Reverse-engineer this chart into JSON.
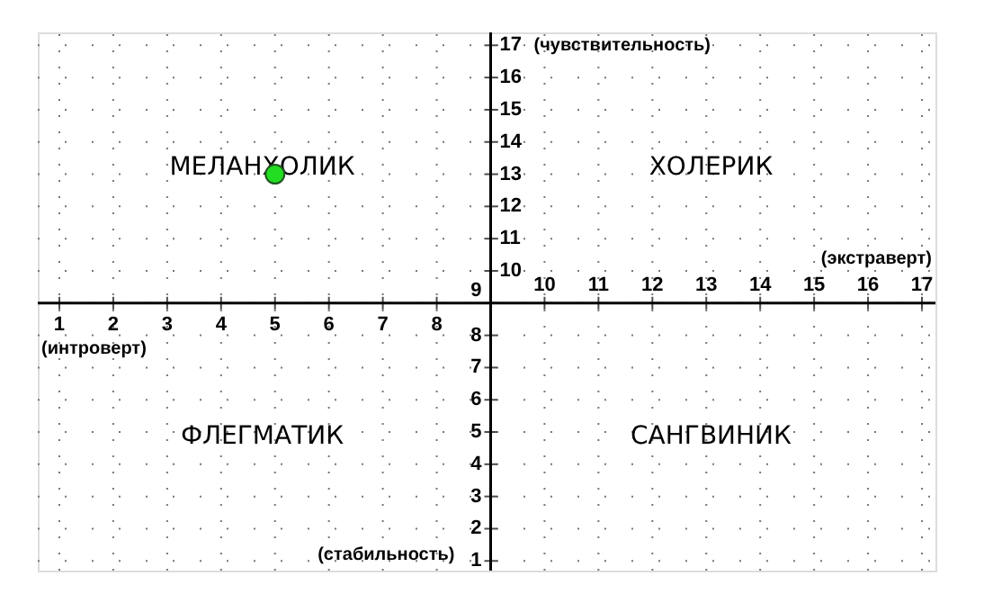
{
  "chart_data": {
    "type": "scatter",
    "x": [
      5
    ],
    "values": [
      13
    ],
    "color": "#22dd22",
    "marker": "circle",
    "xlim": [
      0.6,
      17.25
    ],
    "ylim": [
      0.7,
      17.4
    ],
    "xticks": [
      1,
      2,
      3,
      4,
      5,
      6,
      7,
      8
    ],
    "x2lim": [
      0.6,
      17.25
    ],
    "x2ticks": [
      10,
      11,
      12,
      13,
      14,
      15,
      16,
      17
    ],
    "yticks": [
      1,
      2,
      3,
      4,
      5,
      6,
      7,
      8,
      9
    ],
    "y2lim": [
      0.7,
      17.4
    ],
    "y2ticks": [
      10,
      11,
      12,
      13,
      14,
      15,
      16,
      17
    ],
    "xlabel": "(экстраверт)",
    "y2label": "(чувствительность)",
    "annotations": [
      "(интроверт)",
      "(стабильность)",
      "МЕЛАНХОЛИК",
      "ХОЛЕРИК",
      "ФЛЕГМАТИК",
      "САНГВИНИК"
    ],
    "grid": true
  }
}
